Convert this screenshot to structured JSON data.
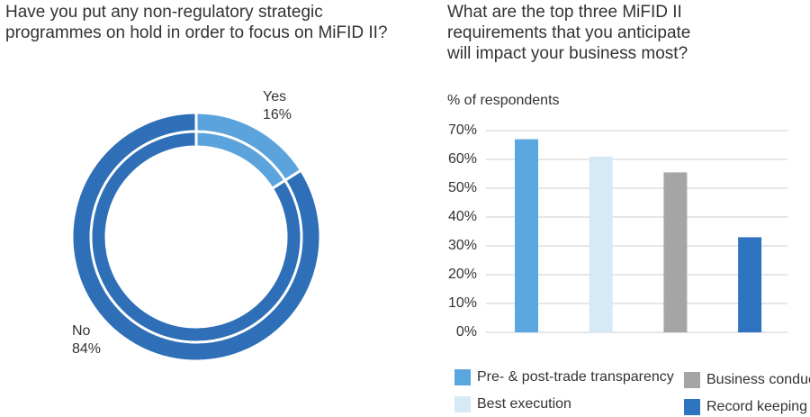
{
  "chart_data": [
    {
      "type": "donut",
      "title": "Have you put any non-regulatory strategic programmes on hold in order to focus on MiFID II?",
      "categories": [
        "Yes",
        "No"
      ],
      "values": [
        16,
        84
      ],
      "value_labels": [
        "16%",
        "84%"
      ],
      "colors": [
        "#5ba3dc",
        "#2e6fb7"
      ]
    },
    {
      "type": "bar",
      "title": "What are the top three MiFID II requirements that you anticipate will impact your business most?",
      "y_label": "% of respondents",
      "categories": [
        "Pre- & post-trade transparency",
        "Best execution",
        "Business conduct",
        "Record keeping"
      ],
      "values": [
        67,
        61,
        55.5,
        33
      ],
      "colors": [
        "#5aa7e0",
        "#d6e9f7",
        "#a5a5a5",
        "#2f74c0"
      ],
      "ylim": [
        0,
        70
      ],
      "yticks": [
        {
          "value": 0,
          "label": "0%"
        },
        {
          "value": 10,
          "label": "10%"
        },
        {
          "value": 20,
          "label": "20%"
        },
        {
          "value": 30,
          "label": "30%"
        },
        {
          "value": 40,
          "label": "40%"
        },
        {
          "value": 50,
          "label": "50%"
        },
        {
          "value": 60,
          "label": "60%"
        },
        {
          "value": 70,
          "label": "70%"
        }
      ],
      "grid": true
    }
  ]
}
